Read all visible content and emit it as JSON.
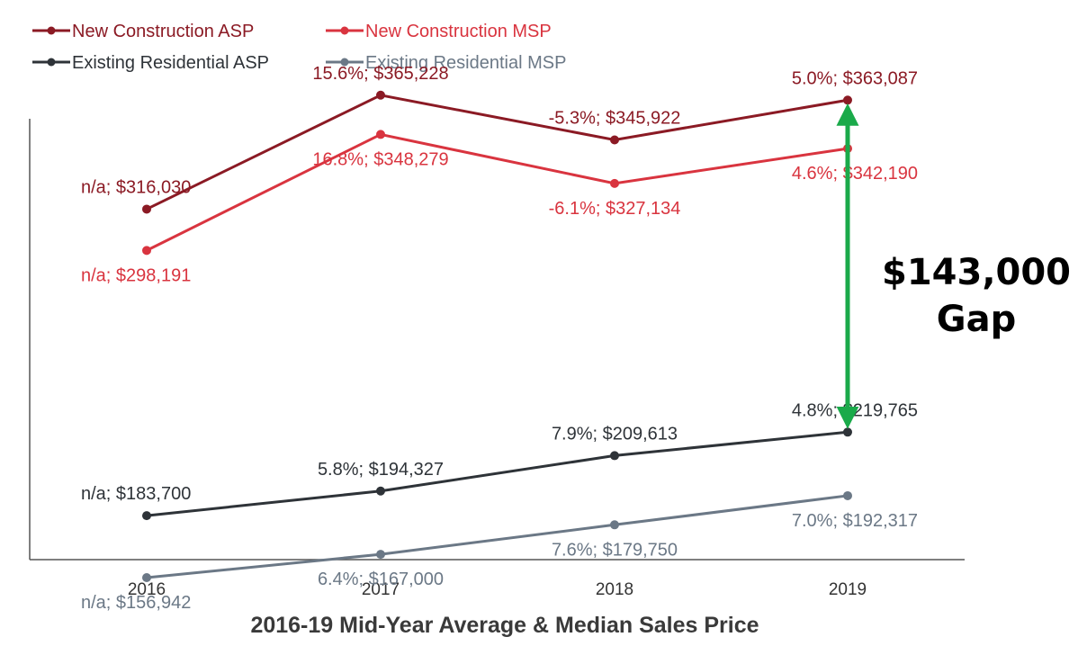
{
  "chart_data": {
    "type": "line",
    "title": "2016-19 Mid-Year Average & Median Sales Price",
    "categories": [
      "2016",
      "2017",
      "2018",
      "2019"
    ],
    "xlabel": "",
    "ylabel": "",
    "ylim": [
      115000,
      390000
    ],
    "grid": false,
    "legend_position": "top-left",
    "series": [
      {
        "name": "New Construction ASP",
        "color": "#8b1a24",
        "values": [
          316030,
          365228,
          345922,
          363087
        ],
        "labels": [
          "n/a; $316,030",
          "15.6%; $365,228",
          "-5.3%; $345,922",
          "5.0%; $363,087"
        ],
        "label_positions": [
          "above",
          "above",
          "above",
          "above"
        ]
      },
      {
        "name": "New Construction MSP",
        "color": "#d9343f",
        "values": [
          298191,
          348279,
          327134,
          342190
        ],
        "labels": [
          "n/a; $298,191",
          "16.8%; $348,279",
          "-6.1%; $327,134",
          "4.6%; $342,190"
        ],
        "label_positions": [
          "below",
          "below",
          "below",
          "below"
        ]
      },
      {
        "name": "Existing Residential ASP",
        "color": "#2e3338",
        "values": [
          183700,
          194327,
          209613,
          219765
        ],
        "labels": [
          "n/a; $183,700",
          "5.8%; $194,327",
          "7.9%; $209,613",
          "4.8%; $219,765"
        ],
        "label_positions": [
          "above",
          "above",
          "above",
          "above"
        ]
      },
      {
        "name": "Existing Residential MSP",
        "color": "#6b7886",
        "values": [
          156942,
          167000,
          179750,
          192317
        ],
        "labels": [
          "n/a; $156,942",
          "6.4%; $167,000",
          "7.6%; $179,750",
          "7.0%; $192,317"
        ],
        "label_positions": [
          "below",
          "below",
          "below",
          "below"
        ]
      }
    ],
    "annotation": {
      "lines": [
        "$143,000",
        "Gap"
      ],
      "color": "#1aaa4a",
      "category": "2019",
      "from_series": 0,
      "to_series": 2
    }
  }
}
